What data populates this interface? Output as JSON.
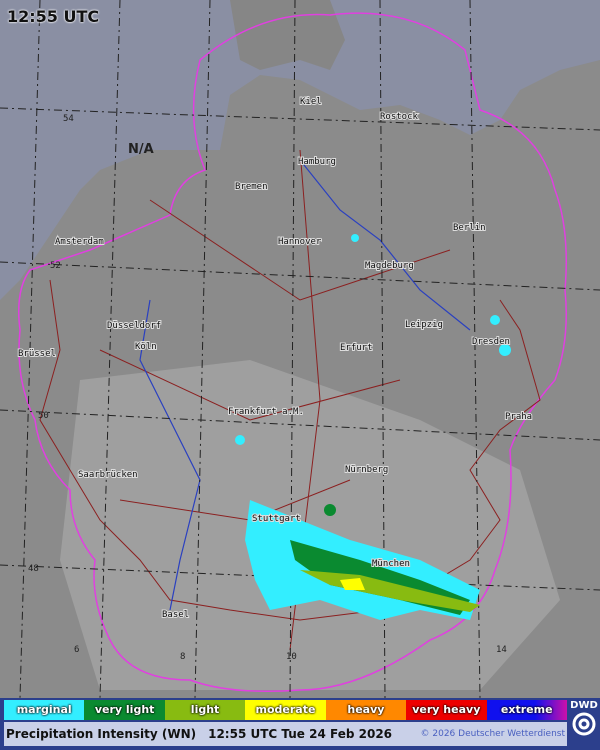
{
  "header": {
    "time": "12:55 UTC"
  },
  "map": {
    "cities": [
      "Kiel",
      "Rostock",
      "Hamburg",
      "Bremen",
      "Hannover",
      "Berlin",
      "Amsterdam",
      "Magdeburg",
      "Leipzig",
      "Dresden",
      "Düsseldorf",
      "Köln",
      "Brüssel",
      "Erfurt",
      "Frankfurt a.M.",
      "Praha",
      "Saarbrücken",
      "Nürnberg",
      "Stuttgart",
      "München",
      "Basel"
    ],
    "latitudes": [
      "54",
      "52",
      "50",
      "48"
    ],
    "longitudes": [
      "6",
      "8",
      "10",
      "14"
    ],
    "na_label": "N/A",
    "colors": {
      "sea": "#8a8fa3",
      "land": "#8d8d8d",
      "radar_boundary": "#e040e0",
      "borders": "#8b2020",
      "rivers": "#2a40c0"
    }
  },
  "legend": {
    "items": [
      {
        "label": "marginal",
        "color": "#33eeff"
      },
      {
        "label": "very light",
        "color": "#0a8a30"
      },
      {
        "label": "light",
        "color": "#88bb11"
      },
      {
        "label": "moderate",
        "color": "#ffff00"
      },
      {
        "label": "heavy",
        "color": "#ff8800"
      },
      {
        "label": "very heavy",
        "color": "#ee0000"
      },
      {
        "label": "extreme",
        "color": "#1010ee"
      }
    ],
    "title": "Precipitation Intensity (WN)",
    "datetime": "12:55 UTC Tue 24 Feb 2026",
    "copyright": "© 2026 Deutscher Wetterdienst",
    "logo": "DWD"
  }
}
